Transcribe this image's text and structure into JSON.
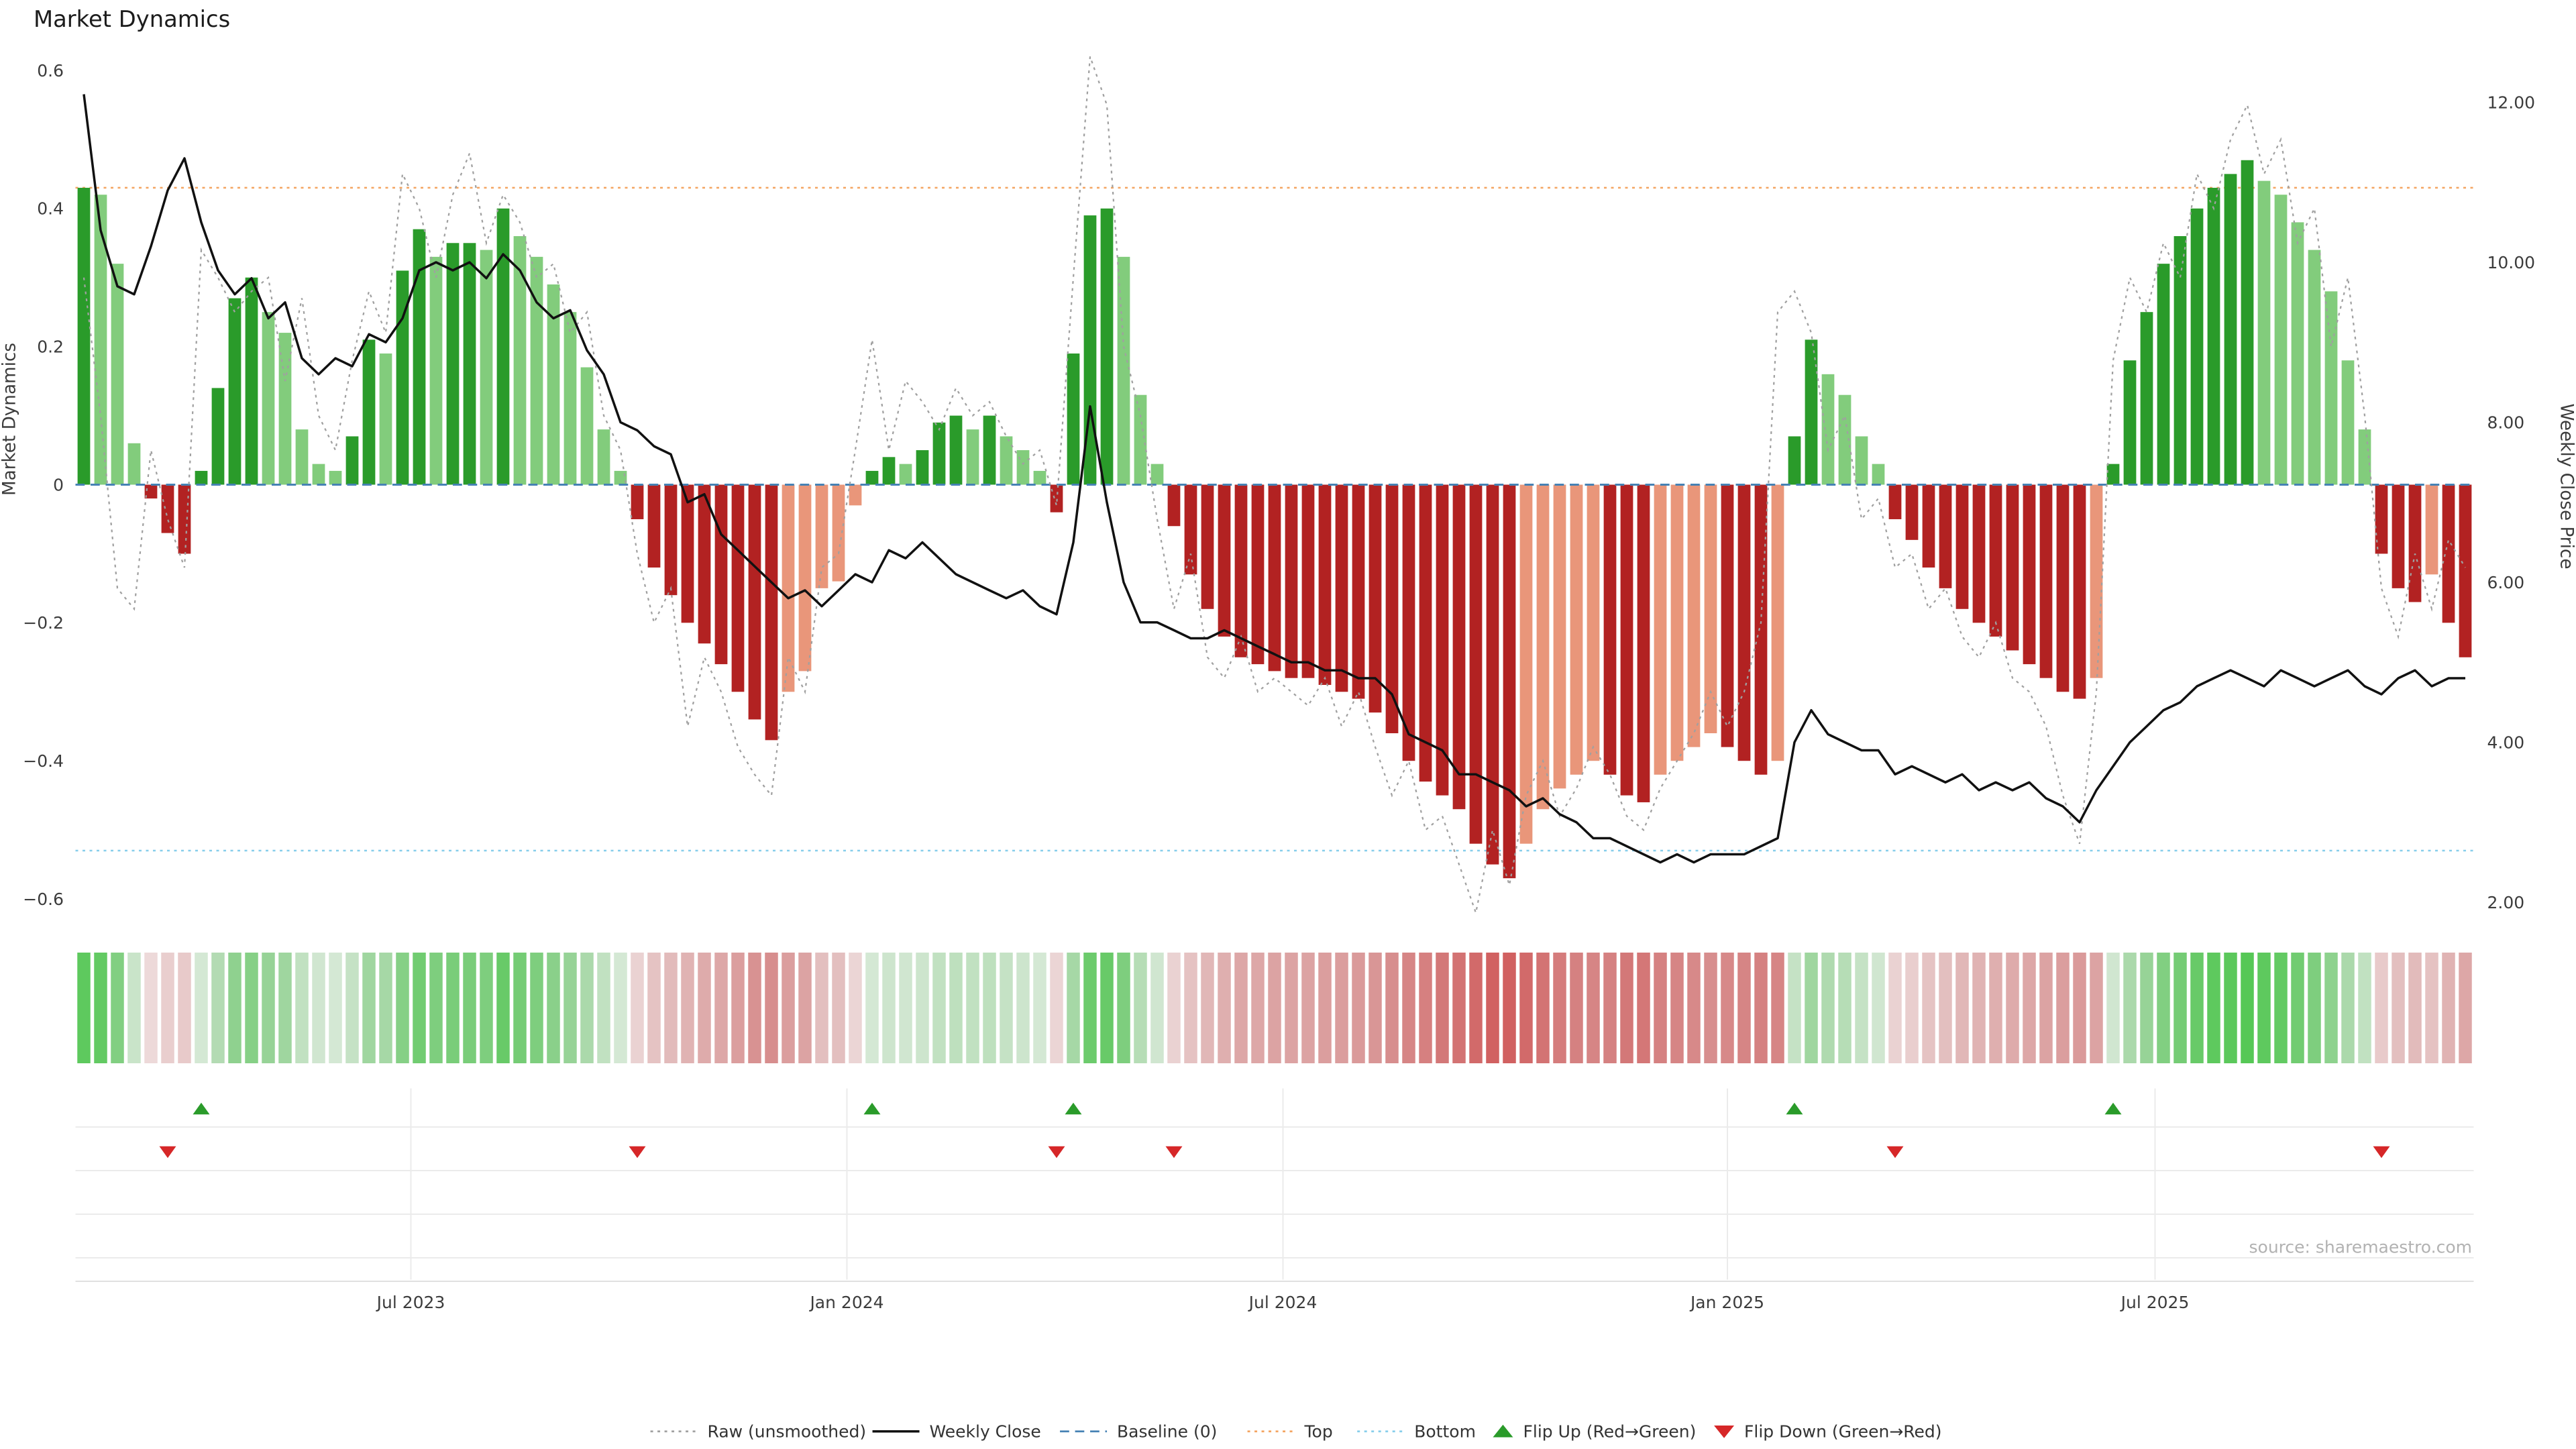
{
  "page": {
    "title": "Market Dynamics",
    "source": "source: sharemaestro.com"
  },
  "axes": {
    "left": {
      "title": "Market Dynamics",
      "tick_labels": [
        "0.6",
        "0.4",
        "0.2",
        "0",
        "−0.2",
        "−0.4",
        "−0.6"
      ],
      "tick_values": [
        0.6,
        0.4,
        0.2,
        0,
        -0.2,
        -0.4,
        -0.6
      ]
    },
    "right": {
      "title": "Weekly Close Price",
      "tick_labels": [
        "12.00",
        "10.00",
        "8.00",
        "6.00",
        "4.00",
        "2.00"
      ],
      "tick_values": [
        12,
        10,
        8,
        6,
        4,
        2
      ]
    },
    "x": {
      "tick_labels": [
        "Jul 2023",
        "Jan 2024",
        "Jul 2024",
        "Jan 2025",
        "Jul 2025"
      ],
      "tick_weeks": [
        19.5,
        45.5,
        71.5,
        98,
        123.5
      ]
    }
  },
  "chart_data": {
    "type": "bar+line combo, weekly time series with heatmap strip and flip markers",
    "title": "Market Dynamics",
    "n_weeks": 143,
    "left_axis": {
      "label": "Market Dynamics",
      "range": [
        -0.62,
        0.62
      ],
      "ticks": [
        0.6,
        0.4,
        0.2,
        0,
        -0.2,
        -0.4,
        -0.6
      ]
    },
    "right_axis": {
      "label": "Weekly Close Price",
      "range": [
        1.8,
        12.6
      ],
      "ticks": [
        12,
        10,
        8,
        6,
        4,
        2
      ]
    },
    "x_axis": {
      "unit": "week",
      "tick_labels": [
        "Jul 2023",
        "Jan 2024",
        "Jul 2024",
        "Jan 2025",
        "Jul 2025"
      ],
      "tick_weeks": [
        19.5,
        45.5,
        71.5,
        98,
        123.5
      ]
    },
    "bars": {
      "name": "Market Dynamics",
      "axis": "left",
      "values": [
        0.43,
        0.42,
        0.32,
        0.06,
        -0.02,
        -0.07,
        -0.1,
        0.02,
        0.14,
        0.27,
        0.3,
        0.25,
        0.22,
        0.08,
        0.03,
        0.02,
        0.07,
        0.21,
        0.19,
        0.31,
        0.37,
        0.33,
        0.35,
        0.35,
        0.34,
        0.4,
        0.36,
        0.33,
        0.29,
        0.25,
        0.17,
        0.08,
        0.02,
        -0.05,
        -0.12,
        -0.16,
        -0.2,
        -0.23,
        -0.26,
        -0.3,
        -0.34,
        -0.37,
        -0.3,
        -0.27,
        -0.15,
        -0.14,
        -0.03,
        0.02,
        0.04,
        0.03,
        0.05,
        0.09,
        0.1,
        0.08,
        0.1,
        0.07,
        0.05,
        0.02,
        -0.04,
        0.19,
        0.39,
        0.4,
        0.33,
        0.13,
        0.03,
        -0.06,
        -0.13,
        -0.18,
        -0.22,
        -0.25,
        -0.26,
        -0.27,
        -0.28,
        -0.28,
        -0.29,
        -0.3,
        -0.31,
        -0.33,
        -0.36,
        -0.4,
        -0.43,
        -0.45,
        -0.47,
        -0.52,
        -0.55,
        -0.57,
        -0.52,
        -0.47,
        -0.44,
        -0.42,
        -0.4,
        -0.42,
        -0.45,
        -0.46,
        -0.42,
        -0.4,
        -0.38,
        -0.36,
        -0.38,
        -0.4,
        -0.42,
        -0.4,
        0.07,
        0.21,
        0.16,
        0.13,
        0.07,
        0.03,
        -0.05,
        -0.08,
        -0.12,
        -0.15,
        -0.18,
        -0.2,
        -0.22,
        -0.24,
        -0.26,
        -0.28,
        -0.3,
        -0.31,
        -0.28,
        0.03,
        0.18,
        0.25,
        0.32,
        0.36,
        0.4,
        0.43,
        0.45,
        0.47,
        0.44,
        0.42,
        0.38,
        0.34,
        0.28,
        0.18,
        0.08,
        -0.1,
        -0.15,
        -0.17,
        -0.13,
        -0.2,
        -0.25
      ]
    },
    "lines": [
      {
        "name": "Raw (unsmoothed)",
        "axis": "left",
        "style": "dotted",
        "values": [
          0.3,
          0.1,
          -0.15,
          -0.18,
          0.05,
          -0.05,
          -0.12,
          0.34,
          0.3,
          0.25,
          0.28,
          0.3,
          0.15,
          0.27,
          0.1,
          0.05,
          0.18,
          0.28,
          0.22,
          0.45,
          0.4,
          0.3,
          0.42,
          0.48,
          0.35,
          0.42,
          0.38,
          0.3,
          0.32,
          0.22,
          0.25,
          0.1,
          0.05,
          -0.1,
          -0.2,
          -0.15,
          -0.35,
          -0.25,
          -0.3,
          -0.38,
          -0.42,
          -0.45,
          -0.25,
          -0.3,
          -0.12,
          -0.1,
          0.05,
          0.21,
          0.05,
          0.15,
          0.12,
          0.08,
          0.14,
          0.1,
          0.12,
          0.07,
          0.03,
          0.05,
          -0.03,
          0.3,
          0.62,
          0.55,
          0.2,
          0.1,
          -0.05,
          -0.18,
          -0.1,
          -0.25,
          -0.28,
          -0.22,
          -0.3,
          -0.28,
          -0.3,
          -0.32,
          -0.28,
          -0.35,
          -0.3,
          -0.38,
          -0.45,
          -0.4,
          -0.5,
          -0.48,
          -0.55,
          -0.62,
          -0.5,
          -0.58,
          -0.45,
          -0.4,
          -0.48,
          -0.44,
          -0.38,
          -0.42,
          -0.48,
          -0.5,
          -0.44,
          -0.4,
          -0.36,
          -0.3,
          -0.35,
          -0.3,
          -0.2,
          0.25,
          0.28,
          0.22,
          0.05,
          0.1,
          -0.05,
          -0.02,
          -0.12,
          -0.1,
          -0.18,
          -0.15,
          -0.22,
          -0.25,
          -0.2,
          -0.28,
          -0.3,
          -0.35,
          -0.45,
          -0.52,
          -0.3,
          0.18,
          0.3,
          0.25,
          0.35,
          0.3,
          0.45,
          0.4,
          0.5,
          0.55,
          0.45,
          0.5,
          0.35,
          0.4,
          0.2,
          0.3,
          0.1,
          -0.15,
          -0.22,
          -0.1,
          -0.18,
          -0.08,
          -0.12
        ]
      },
      {
        "name": "Weekly Close",
        "axis": "right",
        "style": "solid",
        "values": [
          12.1,
          10.4,
          9.7,
          9.6,
          10.2,
          10.9,
          11.3,
          10.5,
          9.9,
          9.6,
          9.8,
          9.3,
          9.5,
          8.8,
          8.6,
          8.8,
          8.7,
          9.1,
          9.0,
          9.3,
          9.9,
          10.0,
          9.9,
          10.0,
          9.8,
          10.1,
          9.9,
          9.5,
          9.3,
          9.4,
          8.9,
          8.6,
          8.0,
          7.9,
          7.7,
          7.6,
          7.0,
          7.1,
          6.6,
          6.4,
          6.2,
          6.0,
          5.8,
          5.9,
          5.7,
          5.9,
          6.1,
          6.0,
          6.4,
          6.3,
          6.5,
          6.3,
          6.1,
          6.0,
          5.9,
          5.8,
          5.9,
          5.7,
          5.6,
          6.5,
          8.2,
          7.0,
          6.0,
          5.5,
          5.5,
          5.4,
          5.3,
          5.3,
          5.4,
          5.3,
          5.2,
          5.1,
          5.0,
          5.0,
          4.9,
          4.9,
          4.8,
          4.8,
          4.6,
          4.1,
          4.0,
          3.9,
          3.6,
          3.6,
          3.5,
          3.4,
          3.2,
          3.3,
          3.1,
          3.0,
          2.8,
          2.8,
          2.7,
          2.6,
          2.5,
          2.6,
          2.5,
          2.6,
          2.6,
          2.6,
          2.7,
          2.8,
          4.0,
          4.4,
          4.1,
          4.0,
          3.9,
          3.9,
          3.6,
          3.7,
          3.6,
          3.5,
          3.6,
          3.4,
          3.5,
          3.4,
          3.5,
          3.3,
          3.2,
          3.0,
          3.4,
          3.7,
          4.0,
          4.2,
          4.4,
          4.5,
          4.7,
          4.8,
          4.9,
          4.8,
          4.7,
          4.9,
          4.8,
          4.7,
          4.8,
          4.9,
          4.7,
          4.6,
          4.8,
          4.9,
          4.7,
          4.8,
          4.8
        ]
      }
    ],
    "reference_lines": [
      {
        "name": "Baseline (0)",
        "axis": "left",
        "value": 0,
        "style": "dashed",
        "color": "#4682B4"
      },
      {
        "name": "Top",
        "axis": "left",
        "value": 0.43,
        "style": "dotted",
        "color": "#F4A460"
      },
      {
        "name": "Bottom",
        "axis": "left",
        "value": -0.53,
        "style": "dotted",
        "color": "#87CEEB"
      }
    ],
    "markers": {
      "flip_up_weeks": [
        7,
        47,
        59,
        102,
        121
      ],
      "flip_down_weeks": [
        5,
        33,
        58,
        65,
        108,
        137
      ]
    },
    "heatmap_strip": {
      "description": "weekly color strip mirroring bar values (green positive, red negative, intensity = magnitude)",
      "values_same_as": "bars.values"
    }
  },
  "legend": {
    "items": [
      {
        "label": "Raw (unsmoothed)",
        "swatch": "dotted-line",
        "color": "#a0a0a0"
      },
      {
        "label": "Weekly Close",
        "swatch": "solid-line",
        "color": "#111111"
      },
      {
        "label": "Baseline (0)",
        "swatch": "dashed-line",
        "color": "#4682B4"
      },
      {
        "label": "Top",
        "swatch": "dotted-line",
        "color": "#F4A460"
      },
      {
        "label": "Bottom",
        "swatch": "dotted-line",
        "color": "#87CEEB"
      },
      {
        "label": "Flip Up (Red→Green)",
        "swatch": "triangle-up",
        "color": "#2a9b2a"
      },
      {
        "label": "Flip Down (Green→Red)",
        "swatch": "triangle-down",
        "color": "#d62728"
      }
    ]
  },
  "colors": {
    "bar_up_strong": "#2a9b2a",
    "bar_up_weak": "#82cc7c",
    "bar_down_strong": "#b22222",
    "bar_down_weak": "#e9967a",
    "weekly_close": "#111111",
    "raw": "#a0a0a0",
    "baseline": "#4682B4",
    "top": "#F4A460",
    "bottom": "#87CEEB",
    "flip_up": "#2a9b2a",
    "flip_down": "#d62728",
    "grid": "#ebebeb"
  }
}
